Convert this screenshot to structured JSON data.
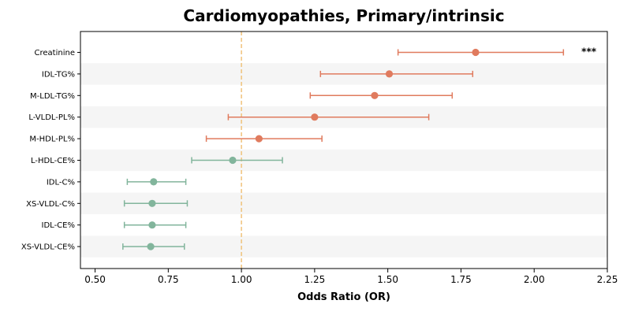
{
  "chart_data": {
    "type": "forest",
    "title": "Cardiomyopathies, Primary/intrinsic",
    "xlabel": "Odds Ratio (OR)",
    "xlim": [
      0.45,
      2.25
    ],
    "xticks": [
      "0.50",
      "0.75",
      "1.00",
      "1.25",
      "1.50",
      "1.75",
      "2.00",
      "2.25"
    ],
    "reference_line": 1.0,
    "colors": {
      "positive": "#e07b5e",
      "negative": "#82b59c",
      "reference": "#f0c27a",
      "band": "#f5f5f5"
    },
    "rows": [
      {
        "label": "Creatinine",
        "or": 1.8,
        "lo": 1.535,
        "hi": 2.1,
        "sig": "***"
      },
      {
        "label": "IDL-TG%",
        "or": 1.505,
        "lo": 1.27,
        "hi": 1.79,
        "sig": ""
      },
      {
        "label": "M-LDL-TG%",
        "or": 1.455,
        "lo": 1.235,
        "hi": 1.72,
        "sig": ""
      },
      {
        "label": "L-VLDL-PL%",
        "or": 1.25,
        "lo": 0.955,
        "hi": 1.64,
        "sig": ""
      },
      {
        "label": "M-HDL-PL%",
        "or": 1.06,
        "lo": 0.88,
        "hi": 1.275,
        "sig": ""
      },
      {
        "label": "L-HDL-CE%",
        "or": 0.97,
        "lo": 0.83,
        "hi": 1.14,
        "sig": ""
      },
      {
        "label": "IDL-C%",
        "or": 0.7,
        "lo": 0.61,
        "hi": 0.81,
        "sig": ""
      },
      {
        "label": "XS-VLDL-C%",
        "or": 0.695,
        "lo": 0.6,
        "hi": 0.815,
        "sig": ""
      },
      {
        "label": "IDL-CE%",
        "or": 0.695,
        "lo": 0.6,
        "hi": 0.81,
        "sig": ""
      },
      {
        "label": "XS-VLDL-CE%",
        "or": 0.69,
        "lo": 0.595,
        "hi": 0.805,
        "sig": ""
      }
    ]
  }
}
